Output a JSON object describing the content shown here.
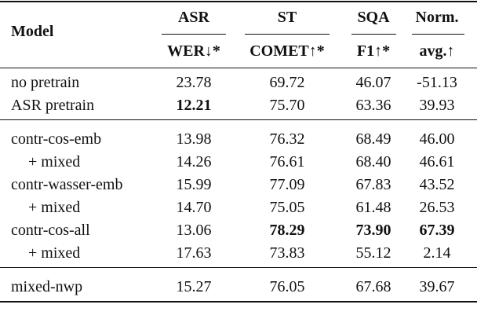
{
  "table": {
    "header": {
      "model": "Model",
      "groups": [
        {
          "name": "ASR",
          "metric": "WER↓*"
        },
        {
          "name": "ST",
          "metric": "COMET↑*"
        },
        {
          "name": "SQA",
          "metric": "F1↑*"
        },
        {
          "name": "Norm.",
          "metric": "avg.↑"
        }
      ]
    },
    "sections": [
      [
        {
          "model": "no pretrain",
          "values": [
            "23.78",
            "69.72",
            "46.07",
            "-51.13"
          ],
          "bold_columns": []
        },
        {
          "model": "ASR pretrain",
          "values": [
            "12.21",
            "75.70",
            "63.36",
            "39.93"
          ],
          "bold_columns": [
            0
          ]
        }
      ],
      [
        {
          "model": "contr-cos-emb",
          "values": [
            "13.98",
            "76.32",
            "68.49",
            "46.00"
          ],
          "bold_columns": []
        },
        {
          "model": "+ mixed",
          "values": [
            "14.26",
            "76.61",
            "68.40",
            "46.61"
          ],
          "bold_columns": []
        },
        {
          "model": "contr-wasser-emb",
          "values": [
            "15.99",
            "77.09",
            "67.83",
            "43.52"
          ],
          "bold_columns": []
        },
        {
          "model": "+ mixed",
          "values": [
            "14.70",
            "75.05",
            "61.48",
            "26.53"
          ],
          "bold_columns": []
        },
        {
          "model": "contr-cos-all",
          "values": [
            "13.06",
            "78.29",
            "73.90",
            "67.39"
          ],
          "bold_columns": [
            1,
            2,
            3
          ]
        },
        {
          "model": "+ mixed",
          "values": [
            "17.63",
            "73.83",
            "55.12",
            "2.14"
          ],
          "bold_columns": []
        }
      ],
      [
        {
          "model": "mixed-nwp",
          "values": [
            "15.27",
            "76.05",
            "67.68",
            "39.67"
          ],
          "bold_columns": []
        }
      ]
    ]
  }
}
